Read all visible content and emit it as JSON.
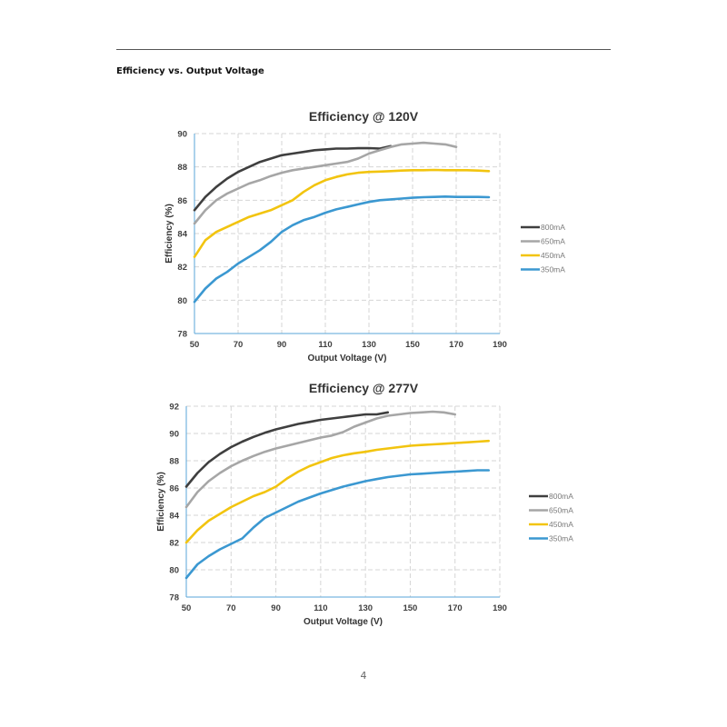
{
  "page": {
    "section_title": "Efficiency vs. Output Voltage",
    "page_number": "4"
  },
  "chart_data": [
    {
      "type": "line",
      "title": "Efficiency @ 120V",
      "xlabel": "Output Voltage (V)",
      "ylabel": "Efficiency (%)",
      "xlim": [
        50,
        190
      ],
      "ylim": [
        78,
        90
      ],
      "xticks": [
        50,
        70,
        90,
        110,
        130,
        150,
        170,
        190
      ],
      "yticks": [
        78,
        80,
        82,
        84,
        86,
        88,
        90
      ],
      "grid": true,
      "legend": "right",
      "series": [
        {
          "name": "800mA",
          "color": "#3f3f3f",
          "x": [
            50,
            55,
            60,
            65,
            70,
            75,
            80,
            85,
            90,
            95,
            100,
            105,
            110,
            115,
            120,
            125,
            130,
            135,
            140
          ],
          "y": [
            85.4,
            86.2,
            86.8,
            87.3,
            87.7,
            88.0,
            88.3,
            88.5,
            88.7,
            88.8,
            88.9,
            89.0,
            89.05,
            89.1,
            89.1,
            89.12,
            89.13,
            89.1,
            89.25
          ]
        },
        {
          "name": "650mA",
          "color": "#a6a6a6",
          "x": [
            50,
            55,
            60,
            65,
            70,
            75,
            80,
            85,
            90,
            95,
            100,
            105,
            110,
            115,
            120,
            125,
            130,
            135,
            140,
            145,
            150,
            155,
            160,
            165,
            170
          ],
          "y": [
            84.6,
            85.4,
            86.0,
            86.4,
            86.7,
            87.0,
            87.2,
            87.45,
            87.65,
            87.8,
            87.9,
            88.0,
            88.1,
            88.2,
            88.3,
            88.5,
            88.8,
            89.0,
            89.2,
            89.35,
            89.4,
            89.45,
            89.4,
            89.35,
            89.2
          ]
        },
        {
          "name": "450mA",
          "color": "#f2c40f",
          "x": [
            50,
            55,
            60,
            65,
            70,
            75,
            80,
            85,
            90,
            95,
            100,
            105,
            110,
            115,
            120,
            125,
            130,
            135,
            140,
            145,
            150,
            155,
            160,
            165,
            170,
            175,
            180,
            185
          ],
          "y": [
            82.6,
            83.6,
            84.1,
            84.4,
            84.7,
            85.0,
            85.2,
            85.4,
            85.7,
            86.0,
            86.5,
            86.9,
            87.2,
            87.4,
            87.55,
            87.65,
            87.7,
            87.72,
            87.75,
            87.78,
            87.8,
            87.8,
            87.82,
            87.8,
            87.8,
            87.8,
            87.78,
            87.75
          ]
        },
        {
          "name": "350mA",
          "color": "#3b98d1",
          "x": [
            50,
            55,
            60,
            65,
            70,
            75,
            80,
            85,
            90,
            95,
            100,
            105,
            110,
            115,
            120,
            125,
            130,
            135,
            140,
            145,
            150,
            155,
            160,
            165,
            170,
            175,
            180,
            185
          ],
          "y": [
            79.9,
            80.7,
            81.3,
            81.7,
            82.2,
            82.6,
            83.0,
            83.5,
            84.1,
            84.5,
            84.8,
            85.0,
            85.25,
            85.45,
            85.6,
            85.75,
            85.9,
            86.0,
            86.05,
            86.1,
            86.15,
            86.18,
            86.2,
            86.22,
            86.2,
            86.2,
            86.2,
            86.18
          ]
        }
      ]
    },
    {
      "type": "line",
      "title": "Efficiency @ 277V",
      "xlabel": "Output Voltage (V)",
      "ylabel": "Efficiency (%)",
      "xlim": [
        50,
        190
      ],
      "ylim": [
        78,
        92
      ],
      "xticks": [
        50,
        70,
        90,
        110,
        130,
        150,
        170,
        190
      ],
      "yticks": [
        78,
        80,
        82,
        84,
        86,
        88,
        90,
        92
      ],
      "grid": true,
      "legend": "right",
      "series": [
        {
          "name": "800mA",
          "color": "#3f3f3f",
          "x": [
            50,
            55,
            60,
            65,
            70,
            75,
            80,
            85,
            90,
            95,
            100,
            105,
            110,
            115,
            120,
            125,
            130,
            135,
            140
          ],
          "y": [
            86.1,
            87.1,
            87.9,
            88.5,
            89.0,
            89.4,
            89.75,
            90.05,
            90.3,
            90.5,
            90.7,
            90.85,
            91.0,
            91.1,
            91.2,
            91.3,
            91.4,
            91.4,
            91.55
          ]
        },
        {
          "name": "650mA",
          "color": "#a6a6a6",
          "x": [
            50,
            55,
            60,
            65,
            70,
            75,
            80,
            85,
            90,
            95,
            100,
            105,
            110,
            115,
            120,
            125,
            130,
            135,
            140,
            145,
            150,
            155,
            160,
            165,
            170
          ],
          "y": [
            84.6,
            85.7,
            86.5,
            87.1,
            87.6,
            88.0,
            88.35,
            88.65,
            88.9,
            89.1,
            89.3,
            89.5,
            89.7,
            89.85,
            90.1,
            90.5,
            90.8,
            91.1,
            91.3,
            91.4,
            91.5,
            91.55,
            91.6,
            91.55,
            91.4
          ]
        },
        {
          "name": "450mA",
          "color": "#f2c40f",
          "x": [
            50,
            55,
            60,
            65,
            70,
            75,
            80,
            85,
            90,
            95,
            100,
            105,
            110,
            115,
            120,
            125,
            130,
            135,
            140,
            145,
            150,
            155,
            160,
            165,
            170,
            175,
            180,
            185
          ],
          "y": [
            82.0,
            82.9,
            83.6,
            84.1,
            84.6,
            85.0,
            85.4,
            85.7,
            86.1,
            86.7,
            87.2,
            87.6,
            87.9,
            88.2,
            88.4,
            88.55,
            88.65,
            88.8,
            88.9,
            89.0,
            89.1,
            89.15,
            89.2,
            89.25,
            89.3,
            89.35,
            89.4,
            89.45
          ]
        },
        {
          "name": "350mA",
          "color": "#3b98d1",
          "x": [
            50,
            55,
            60,
            65,
            70,
            75,
            80,
            85,
            90,
            95,
            100,
            105,
            110,
            115,
            120,
            125,
            130,
            135,
            140,
            145,
            150,
            155,
            160,
            165,
            170,
            175,
            180,
            185
          ],
          "y": [
            79.4,
            80.4,
            81.0,
            81.5,
            81.9,
            82.3,
            83.1,
            83.8,
            84.2,
            84.6,
            85.0,
            85.3,
            85.6,
            85.85,
            86.1,
            86.3,
            86.5,
            86.65,
            86.8,
            86.9,
            87.0,
            87.05,
            87.1,
            87.15,
            87.2,
            87.25,
            87.3,
            87.3
          ]
        }
      ]
    }
  ]
}
